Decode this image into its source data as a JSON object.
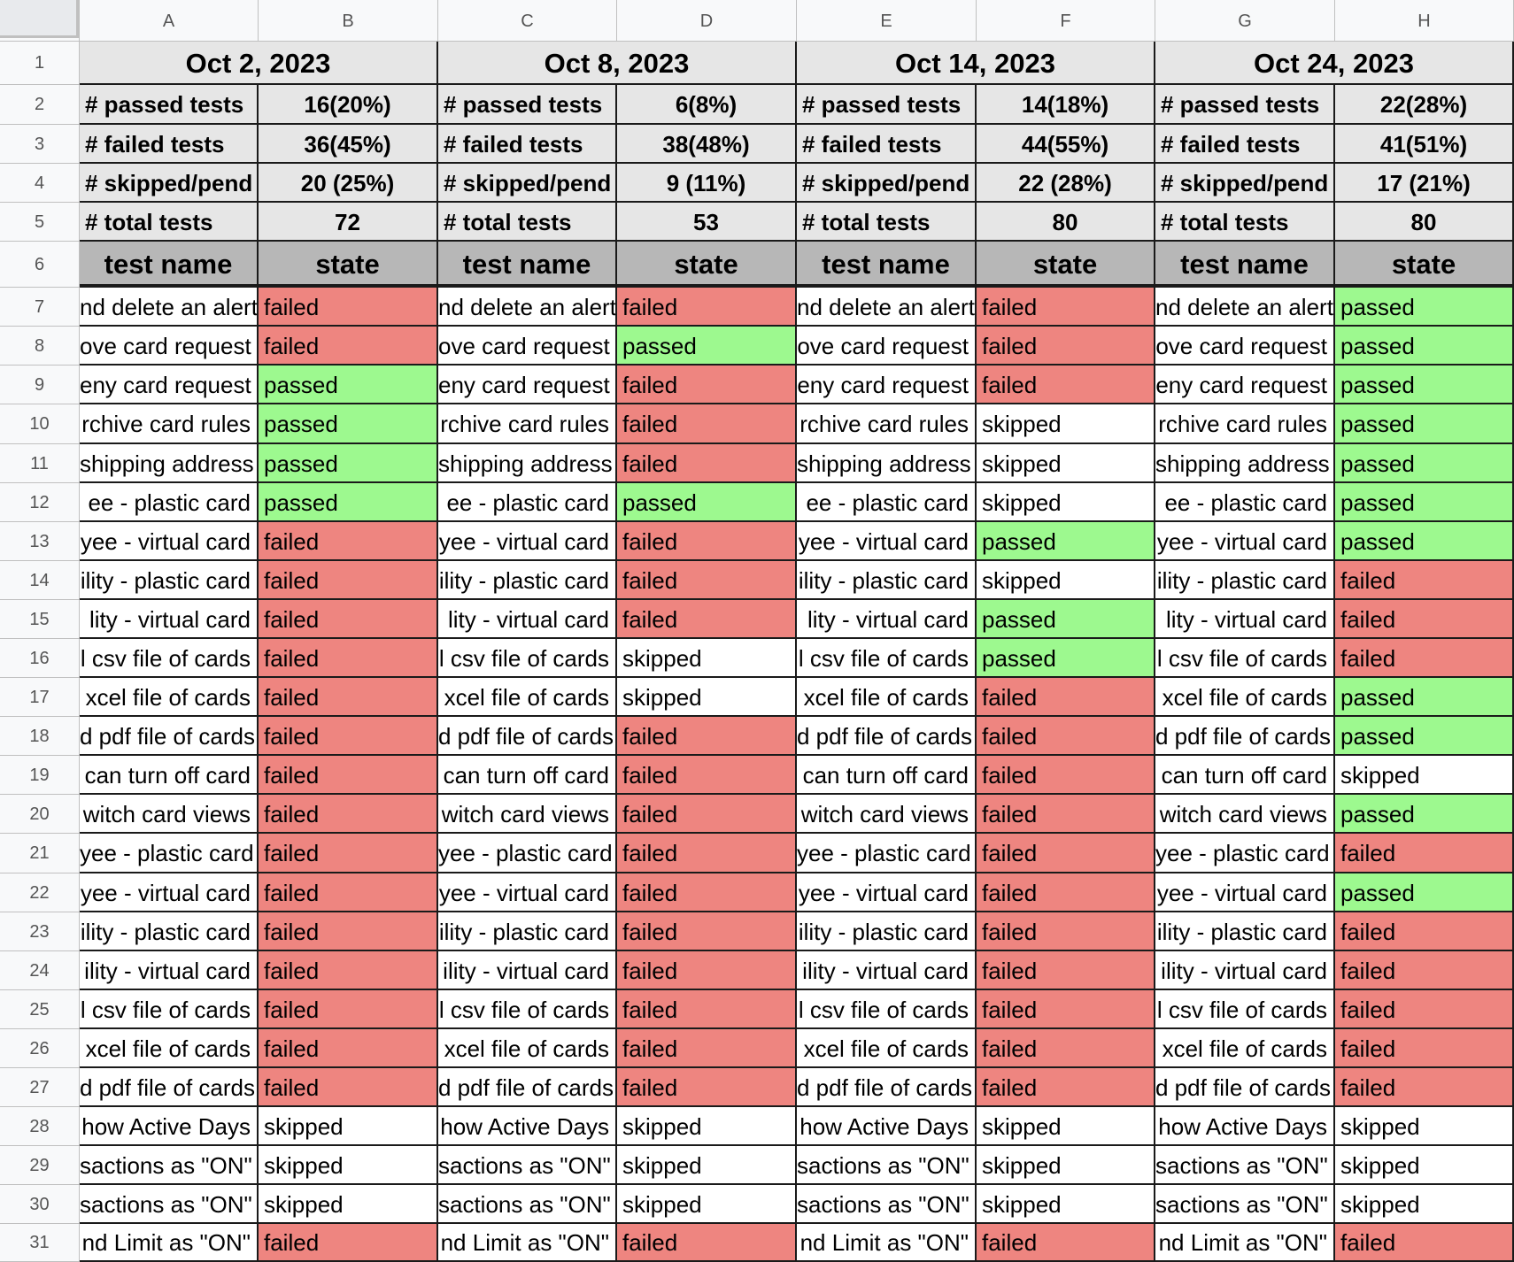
{
  "columns": [
    "A",
    "B",
    "C",
    "D",
    "E",
    "F",
    "G",
    "H"
  ],
  "rows": [
    "1",
    "2",
    "3",
    "4",
    "5",
    "6",
    "7",
    "8",
    "9",
    "10",
    "11",
    "12",
    "13",
    "14",
    "15",
    "16",
    "17",
    "18",
    "19",
    "20",
    "21",
    "22",
    "23",
    "24",
    "25",
    "26",
    "27",
    "28",
    "29",
    "30",
    "31"
  ],
  "header_labels": {
    "test_name": "test name",
    "state": "state"
  },
  "stat_labels": [
    "# passed tests",
    "# failed tests",
    "# skipped/pend",
    "# total tests"
  ],
  "runs": [
    {
      "date": "Oct 2, 2023",
      "stats": [
        "16(20%)",
        "36(45%)",
        "20 (25%)",
        "72"
      ]
    },
    {
      "date": "Oct 8, 2023",
      "stats": [
        "6(8%)",
        "38(48%)",
        "9 (11%)",
        "53"
      ]
    },
    {
      "date": "Oct 14, 2023",
      "stats": [
        "14(18%)",
        "44(55%)",
        "22 (28%)",
        "80"
      ]
    },
    {
      "date": "Oct 24, 2023",
      "stats": [
        "22(28%)",
        "41(51%)",
        "17 (21%)",
        "80"
      ]
    }
  ],
  "test_names": [
    "nd delete an alert",
    "ove card request",
    "eny card request",
    "rchive card rules",
    "shipping address",
    "ee - plastic card",
    "yee - virtual card",
    "ility - plastic card",
    "lity - virtual card",
    "l csv file of cards",
    "xcel file of cards",
    "d pdf file of cards",
    "can turn off card",
    "witch card views",
    "yee - plastic card",
    "yee - virtual card",
    "ility - plastic card",
    "ility - virtual card",
    "l csv file of cards",
    "xcel file of cards",
    "d pdf file of cards",
    "how Active Days",
    "sactions as \"ON\"",
    "sactions as \"ON\"",
    "nd Limit as \"ON\""
  ],
  "states": [
    [
      "failed",
      "failed",
      "passed",
      "passed",
      "passed",
      "passed",
      "failed",
      "failed",
      "failed",
      "failed",
      "failed",
      "failed",
      "failed",
      "failed",
      "failed",
      "failed",
      "failed",
      "failed",
      "failed",
      "failed",
      "failed",
      "skipped",
      "skipped",
      "skipped",
      "failed"
    ],
    [
      "failed",
      "passed",
      "failed",
      "failed",
      "failed",
      "passed",
      "failed",
      "failed",
      "failed",
      "skipped",
      "skipped",
      "failed",
      "failed",
      "failed",
      "failed",
      "failed",
      "failed",
      "failed",
      "failed",
      "failed",
      "failed",
      "skipped",
      "skipped",
      "skipped",
      "failed"
    ],
    [
      "failed",
      "failed",
      "failed",
      "skipped",
      "skipped",
      "skipped",
      "passed",
      "skipped",
      "passed",
      "passed",
      "failed",
      "failed",
      "failed",
      "failed",
      "failed",
      "failed",
      "failed",
      "failed",
      "failed",
      "failed",
      "failed",
      "skipped",
      "skipped",
      "skipped",
      "failed"
    ],
    [
      "passed",
      "passed",
      "passed",
      "passed",
      "passed",
      "passed",
      "passed",
      "failed",
      "failed",
      "failed",
      "passed",
      "passed",
      "skipped",
      "passed",
      "failed",
      "passed",
      "failed",
      "failed",
      "failed",
      "failed",
      "failed",
      "skipped",
      "skipped",
      "skipped",
      "failed"
    ]
  ]
}
